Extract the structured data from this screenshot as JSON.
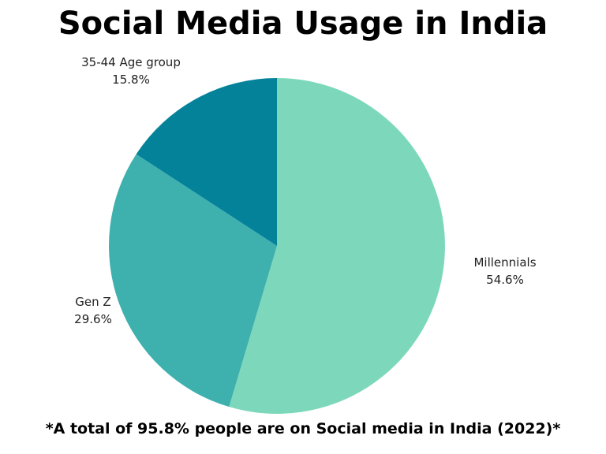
{
  "title": "Social Media Usage in India",
  "footnote": "*A total of 95.8% people are on Social media in India (2022)*",
  "chart_data": {
    "type": "pie",
    "title": "Social Media Usage in India",
    "start_angle_deg": 0,
    "direction": "clockwise",
    "legend": "none",
    "slices": [
      {
        "label": "Millennials",
        "value": 54.6,
        "value_label": "54.6%",
        "color": "#7dd8bb"
      },
      {
        "label": "Gen Z",
        "value": 29.6,
        "value_label": "29.6%",
        "color": "#3eb0ae"
      },
      {
        "label": "35-44 Age group",
        "value": 15.8,
        "value_label": "15.8%",
        "color": "#04829a"
      }
    ]
  }
}
